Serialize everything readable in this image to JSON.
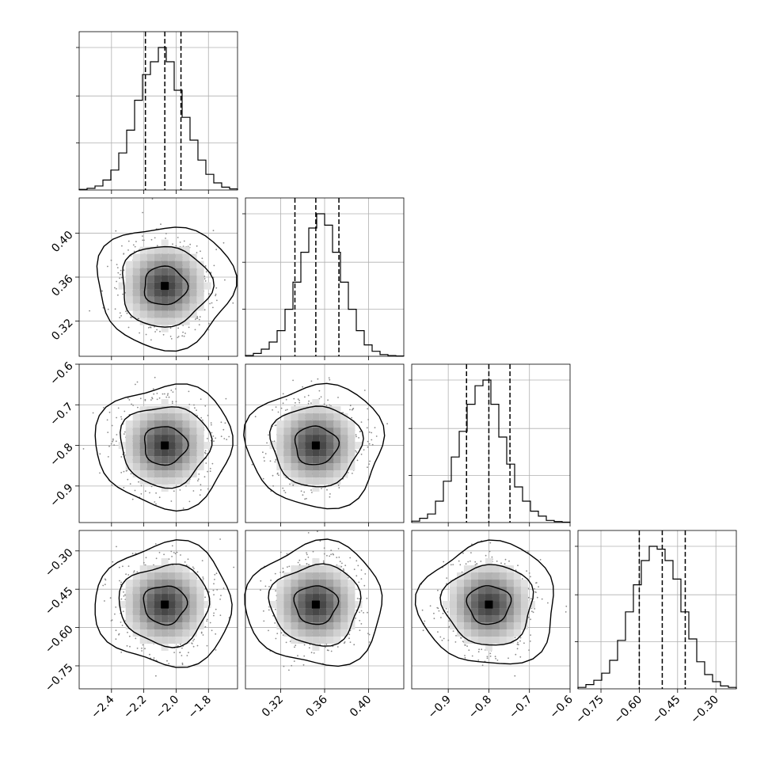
{
  "chart_data": {
    "type": "corner",
    "n_params": 4,
    "grid": true,
    "params": [
      {
        "index": 0,
        "median": -2.07,
        "quantiles": [
          -2.19,
          -2.07,
          -1.97
        ],
        "range": [
          -2.6,
          -1.62
        ],
        "ticks": [
          -2.4,
          -2.2,
          -2.0,
          -1.8
        ],
        "tick_labels": [
          "−2.4",
          "−2.2",
          "−2.0",
          "−1.8"
        ],
        "hist": [
          0.004,
          0.012,
          0.028,
          0.07,
          0.14,
          0.26,
          0.42,
          0.63,
          0.81,
          0.9,
          1.0,
          0.9,
          0.7,
          0.51,
          0.35,
          0.21,
          0.11,
          0.05,
          0.02,
          0.008
        ]
      },
      {
        "index": 1,
        "median": 0.352,
        "quantiles": [
          0.333,
          0.352,
          0.373
        ],
        "range": [
          0.288,
          0.432
        ],
        "ticks": [
          0.32,
          0.36,
          0.4
        ],
        "tick_labels": [
          "0.32",
          "0.36",
          "0.40"
        ],
        "hist": [
          0.006,
          0.02,
          0.05,
          0.1,
          0.18,
          0.33,
          0.52,
          0.73,
          0.9,
          1.0,
          0.92,
          0.73,
          0.52,
          0.33,
          0.18,
          0.08,
          0.035,
          0.012,
          0.005,
          0.002
        ]
      },
      {
        "index": 2,
        "median": -0.8,
        "quantiles": [
          -0.855,
          -0.8,
          -0.748
        ],
        "range": [
          -0.99,
          -0.6
        ],
        "ticks": [
          -0.9,
          -0.8,
          -0.7,
          -0.6
        ],
        "tick_labels": [
          "−0.9",
          "−0.8",
          "−0.7",
          "−0.6"
        ],
        "hist": [
          0.01,
          0.03,
          0.06,
          0.15,
          0.29,
          0.46,
          0.64,
          0.83,
          0.96,
          1.0,
          0.83,
          0.6,
          0.41,
          0.25,
          0.15,
          0.08,
          0.045,
          0.015,
          0.007,
          0.003
        ]
      },
      {
        "index": 3,
        "median": -0.51,
        "quantiles": [
          -0.6,
          -0.51,
          -0.42
        ],
        "range": [
          -0.84,
          -0.22
        ],
        "ticks": [
          -0.75,
          -0.6,
          -0.45,
          -0.3
        ],
        "tick_labels": [
          "−0.75",
          "−0.60",
          "−0.45",
          "−0.30"
        ],
        "hist": [
          0.01,
          0.03,
          0.06,
          0.11,
          0.2,
          0.34,
          0.54,
          0.73,
          0.9,
          1.0,
          0.98,
          0.9,
          0.77,
          0.54,
          0.35,
          0.19,
          0.1,
          0.05,
          0.02,
          0.01
        ]
      }
    ],
    "y_tick_labels": {
      "1": [
        "0.32",
        "0.36",
        "0.40"
      ],
      "2": [
        "−0.9",
        "−0.8",
        "−0.7",
        "−0.6"
      ],
      "3": [
        "−0.75",
        "−0.60",
        "−0.45",
        "−0.30"
      ]
    },
    "y_ticks": {
      "1": [
        0.32,
        0.36,
        0.4
      ],
      "2": [
        -0.9,
        -0.8,
        -0.7,
        -0.6
      ],
      "3": [
        -0.75,
        -0.6,
        -0.45,
        -0.3
      ]
    },
    "contour_levels": [
      "1-sigma",
      "2-sigma",
      "3-sigma"
    ],
    "scatter": "light gray samples",
    "colors": {
      "line": "#000000",
      "grid": "#b0b0b0",
      "points": "#8a8a8a"
    }
  }
}
